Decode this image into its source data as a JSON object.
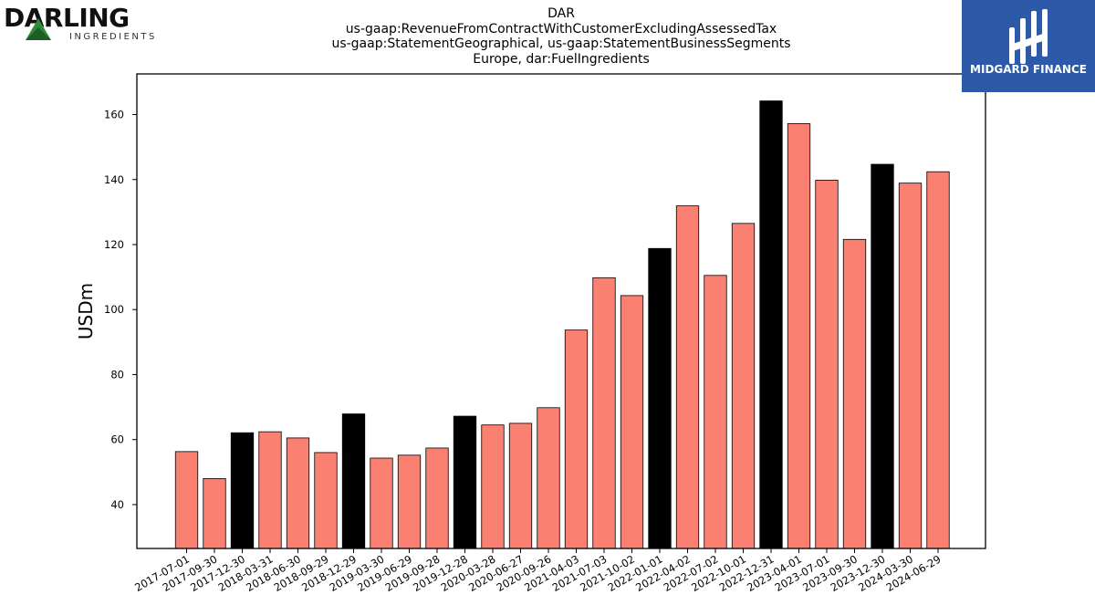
{
  "logos": {
    "left": {
      "wordmark": "DARLING",
      "subtext": "INGREDIENTS"
    },
    "right": {
      "wordmark": "MIDGARD FINANCE"
    }
  },
  "chart_data": {
    "type": "bar",
    "title_lines": [
      "DAR",
      "us-gaap:RevenueFromContractWithCustomerExcludingAssessedTax",
      "us-gaap:StatementGeographical, us-gaap:StatementBusinessSegments",
      "Europe, dar:FuelIngredients"
    ],
    "xlabel": "",
    "ylabel": "USDm",
    "ylim": [
      26.5,
      172.5
    ],
    "yticks": [
      40,
      60,
      80,
      100,
      120,
      140,
      160
    ],
    "grid": false,
    "categories": [
      "2017-07-01",
      "2017-09-30",
      "2017-12-30",
      "2018-03-31",
      "2018-06-30",
      "2018-09-29",
      "2018-12-29",
      "2019-03-30",
      "2019-06-29",
      "2019-09-28",
      "2019-12-28",
      "2020-03-28",
      "2020-06-27",
      "2020-09-26",
      "2021-04-03",
      "2021-07-03",
      "2021-10-02",
      "2022-01-01",
      "2022-04-02",
      "2022-07-02",
      "2022-10-01",
      "2022-12-31",
      "2023-04-01",
      "2023-07-01",
      "2023-09-30",
      "2023-12-30",
      "2024-03-30",
      "2024-06-29"
    ],
    "values": [
      56.3,
      48.0,
      62.1,
      62.4,
      60.5,
      56.0,
      67.9,
      54.3,
      55.2,
      57.4,
      67.2,
      64.5,
      65.0,
      69.8,
      93.7,
      109.8,
      104.3,
      118.8,
      131.9,
      110.5,
      126.5,
      164.2,
      157.2,
      139.8,
      121.6,
      144.7,
      138.9,
      142.4
    ],
    "highlighted_categories": [
      "2017-12-30",
      "2018-12-29",
      "2019-12-28",
      "2022-01-01",
      "2022-12-31",
      "2023-12-30"
    ],
    "colors": {
      "default": "#fa8072",
      "highlight": "#000000",
      "edge": "#000000"
    }
  }
}
